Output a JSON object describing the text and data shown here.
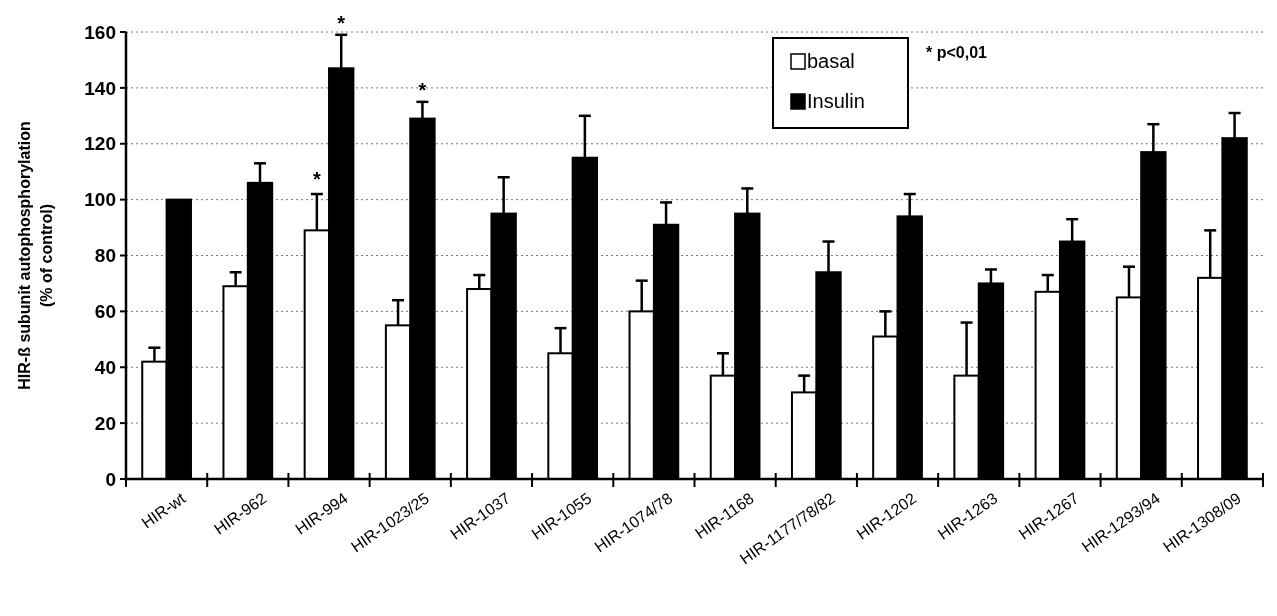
{
  "chart_data": {
    "type": "bar",
    "ylabel": "HIR-ß subunit autophosphorylation\n(% of control)",
    "categories": [
      "HIR-wt",
      "HIR-962",
      "HIR-994",
      "HIR-1023/25",
      "HIR-1037",
      "HIR-1055",
      "HIR-1074/78",
      "HIR-1168",
      "HIR-1177/78/82",
      "HIR-1202",
      "HIR-1263",
      "HIR-1267",
      "HIR-1293/94",
      "HIR-1308/09"
    ],
    "series": [
      {
        "name": "basal",
        "color": "#ffffff",
        "values": [
          42,
          69,
          89,
          55,
          68,
          45,
          60,
          37,
          31,
          51,
          37,
          67,
          65,
          72
        ],
        "errors": [
          5,
          5,
          13,
          9,
          5,
          9,
          11,
          8,
          6,
          9,
          19,
          6,
          11,
          17
        ]
      },
      {
        "name": "Insulin",
        "color": "#000000",
        "values": [
          100,
          106,
          147,
          129,
          95,
          115,
          91,
          95,
          74,
          94,
          70,
          85,
          117,
          122
        ],
        "errors": [
          null,
          7,
          12,
          6,
          13,
          15,
          8,
          9,
          11,
          8,
          5,
          8,
          10,
          9
        ]
      }
    ],
    "ylim": [
      0,
      160
    ],
    "yticks": [
      0,
      20,
      40,
      60,
      80,
      100,
      120,
      140,
      160
    ],
    "grid": "y",
    "legend": "top right",
    "annotations": [
      "*",
      {
        "text": "*",
        "x": "HIR-994",
        "y": 147
      },
      {
        "text": "*",
        "x": "HIR-1023/25",
        "y": 129
      },
      "* p<0,01"
    ]
  }
}
